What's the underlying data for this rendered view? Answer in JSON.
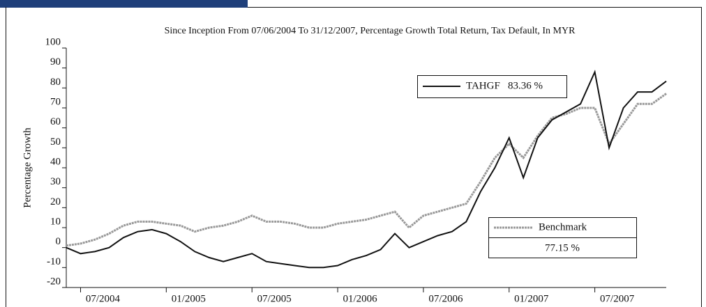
{
  "chart_data": {
    "type": "line",
    "title": "Since Inception From 07/06/2004 To 31/12/2007,  Percentage Growth Total Return, Tax Default, In MYR",
    "y_label": "Percentage Growth",
    "x": [
      "06/2004",
      "07/2004",
      "08/2004",
      "09/2004",
      "10/2004",
      "11/2004",
      "12/2004",
      "01/2005",
      "02/2005",
      "03/2005",
      "04/2005",
      "05/2005",
      "06/2005",
      "07/2005",
      "08/2005",
      "09/2005",
      "10/2005",
      "11/2005",
      "12/2005",
      "01/2006",
      "02/2006",
      "03/2006",
      "04/2006",
      "05/2006",
      "06/2006",
      "07/2006",
      "08/2006",
      "09/2006",
      "10/2006",
      "11/2006",
      "12/2006",
      "01/2007",
      "02/2007",
      "03/2007",
      "04/2007",
      "05/2007",
      "06/2007",
      "07/2007",
      "08/2007",
      "09/2007",
      "10/2007",
      "11/2007",
      "12/2007"
    ],
    "series": [
      {
        "name": "TAHGF",
        "end_label": "83.36 %",
        "color": "#111111",
        "values": [
          0,
          -3,
          -2,
          0,
          5,
          8,
          9,
          7,
          3,
          -2,
          -5,
          -7,
          -5,
          -3,
          -7,
          -8,
          -9,
          -10,
          -10,
          -9,
          -6,
          -4,
          -1,
          7,
          0,
          3,
          6,
          8,
          13,
          28,
          40,
          55,
          35,
          55,
          64,
          68,
          72,
          88,
          50,
          70,
          78,
          78,
          83.36
        ]
      },
      {
        "name": "Benchmark",
        "end_label": "77.15 %",
        "color": "#999999",
        "values": [
          1,
          2,
          4,
          7,
          11,
          13,
          13,
          12,
          11,
          8,
          10,
          11,
          13,
          16,
          13,
          13,
          12,
          10,
          10,
          12,
          13,
          14,
          16,
          18,
          10,
          16,
          18,
          20,
          22,
          33,
          45,
          52,
          45,
          56,
          65,
          67,
          70,
          70,
          52,
          62,
          72,
          72,
          77.15
        ]
      }
    ],
    "xticks": [
      "07/2004",
      "01/2005",
      "07/2005",
      "01/2006",
      "07/2006",
      "01/2007",
      "07/2007"
    ],
    "ylim": [
      -20,
      100
    ],
    "yticks": [
      -20,
      -10,
      0,
      10,
      20,
      30,
      40,
      50,
      60,
      70,
      80,
      90,
      100
    ]
  }
}
